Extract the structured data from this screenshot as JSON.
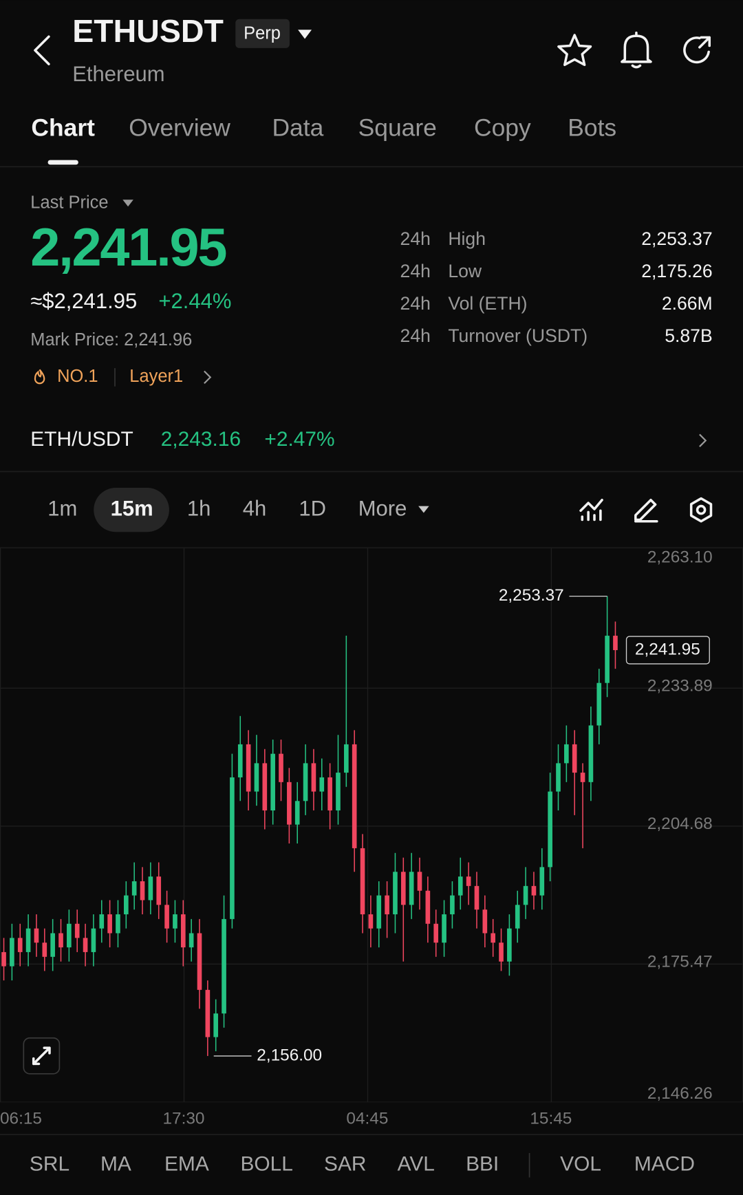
{
  "header": {
    "symbol": "ETHUSDT",
    "badge": "Perp",
    "name": "Ethereum"
  },
  "tabs": {
    "items": [
      "Chart",
      "Overview",
      "Data",
      "Square",
      "Copy",
      "Bots"
    ],
    "active": 0
  },
  "price": {
    "label": "Last Price",
    "value": "2,241.95",
    "usd": "≈$2,241.95",
    "change": "+2.44%",
    "mark": "Mark Price: 2,241.96",
    "tags": [
      "NO.1",
      "Layer1"
    ]
  },
  "stats": {
    "rows": [
      {
        "period": "24h",
        "name": "High",
        "value": "2,253.37"
      },
      {
        "period": "24h",
        "name": "Low",
        "value": "2,175.26"
      },
      {
        "period": "24h",
        "name": "Vol (ETH)",
        "value": "2.66M"
      },
      {
        "period": "24h",
        "name": "Turnover (USDT)",
        "value": "5.87B"
      }
    ]
  },
  "spot": {
    "pair": "ETH/USDT",
    "price": "2,243.16",
    "change": "+2.47%"
  },
  "intervals": {
    "items": [
      "1m",
      "15m",
      "1h",
      "4h",
      "1D",
      "More"
    ],
    "active": 1
  },
  "chart_data": {
    "type": "candlestick",
    "up_color": "#25c282",
    "down_color": "#f0465f",
    "ylim": [
      2146.26,
      2263.1
    ],
    "yticks": [
      {
        "value": 2263.1,
        "label": "2,263.10"
      },
      {
        "value": 2233.89,
        "label": "2,233.89"
      },
      {
        "value": 2204.68,
        "label": "2,204.68"
      },
      {
        "value": 2175.47,
        "label": "2,175.47"
      },
      {
        "value": 2146.26,
        "label": "2,146.26"
      }
    ],
    "xticks": [
      "06:15",
      "17:30",
      "04:45",
      "15:45"
    ],
    "grid": true,
    "open": [
      2178,
      2175,
      2181,
      2178,
      2183,
      2180,
      2177,
      2182,
      2179,
      2184,
      2181,
      2178,
      2183,
      2186,
      2182,
      2186,
      2190,
      2193,
      2189,
      2194,
      2188,
      2183,
      2186,
      2179,
      2182,
      2170,
      2160,
      2165,
      2185,
      2215,
      2222,
      2212,
      2218,
      2208,
      2220,
      2214,
      2205,
      2210,
      2218,
      2212,
      2215,
      2208,
      2216,
      2222,
      2200,
      2186,
      2183,
      2190,
      2186,
      2195,
      2188,
      2195,
      2191,
      2184,
      2180,
      2186,
      2190,
      2194,
      2192,
      2187,
      2182,
      2180,
      2176,
      2183,
      2188,
      2192,
      2190,
      2196,
      2212,
      2218,
      2222,
      2216,
      2214,
      2226,
      2235,
      2245
    ],
    "high": [
      2181,
      2184,
      2184,
      2186,
      2186,
      2183,
      2185,
      2185,
      2187,
      2187,
      2184,
      2186,
      2189,
      2189,
      2189,
      2193,
      2197,
      2196,
      2197,
      2197,
      2191,
      2189,
      2189,
      2185,
      2185,
      2172,
      2168,
      2190,
      2220,
      2228,
      2225,
      2224,
      2221,
      2223,
      2223,
      2217,
      2214,
      2222,
      2221,
      2219,
      2218,
      2224,
      2245,
      2225,
      2203,
      2190,
      2193,
      2193,
      2199,
      2198,
      2199,
      2198,
      2194,
      2187,
      2189,
      2193,
      2198,
      2197,
      2195,
      2190,
      2185,
      2183,
      2186,
      2191,
      2196,
      2195,
      2200,
      2216,
      2222,
      2226,
      2225,
      2218,
      2230,
      2238,
      2253.37,
      2248
    ],
    "low": [
      2172,
      2172,
      2175,
      2175,
      2177,
      2174,
      2174,
      2176,
      2176,
      2178,
      2175,
      2175,
      2180,
      2179,
      2179,
      2183,
      2187,
      2186,
      2186,
      2185,
      2180,
      2180,
      2175,
      2176,
      2166,
      2156,
      2157,
      2162,
      2183,
      2210,
      2208,
      2209,
      2204,
      2205,
      2210,
      2201,
      2201,
      2207,
      2208,
      2208,
      2204,
      2205,
      2213,
      2195,
      2182,
      2179,
      2179,
      2181,
      2182,
      2176,
      2185,
      2187,
      2180,
      2177,
      2177,
      2183,
      2187,
      2188,
      2183,
      2179,
      2177,
      2174,
      2173,
      2180,
      2185,
      2187,
      2187,
      2193,
      2208,
      2214,
      2207,
      2200,
      2210,
      2222,
      2232,
      2238
    ],
    "close": [
      2175,
      2181,
      2178,
      2183,
      2180,
      2177,
      2182,
      2179,
      2184,
      2181,
      2178,
      2183,
      2186,
      2182,
      2186,
      2190,
      2193,
      2189,
      2194,
      2188,
      2183,
      2186,
      2179,
      2182,
      2170,
      2160,
      2165,
      2185,
      2215,
      2222,
      2212,
      2218,
      2208,
      2220,
      2214,
      2205,
      2210,
      2218,
      2212,
      2215,
      2208,
      2216,
      2222,
      2200,
      2186,
      2183,
      2190,
      2186,
      2195,
      2188,
      2195,
      2191,
      2184,
      2180,
      2186,
      2190,
      2194,
      2192,
      2187,
      2182,
      2180,
      2176,
      2183,
      2188,
      2192,
      2190,
      2196,
      2212,
      2218,
      2222,
      2216,
      2214,
      2226,
      2235,
      2245,
      2241.95
    ],
    "high_marker": {
      "value": 2253.37,
      "label": "2,253.37"
    },
    "low_marker": {
      "value": 2156.0,
      "label": "2,156.00"
    },
    "last_marker": {
      "value": 2241.95,
      "label": "2,241.95"
    }
  },
  "indicators": [
    "SRL",
    "MA",
    "EMA",
    "BOLL",
    "SAR",
    "AVL",
    "BBI",
    "VOL",
    "MACD"
  ]
}
